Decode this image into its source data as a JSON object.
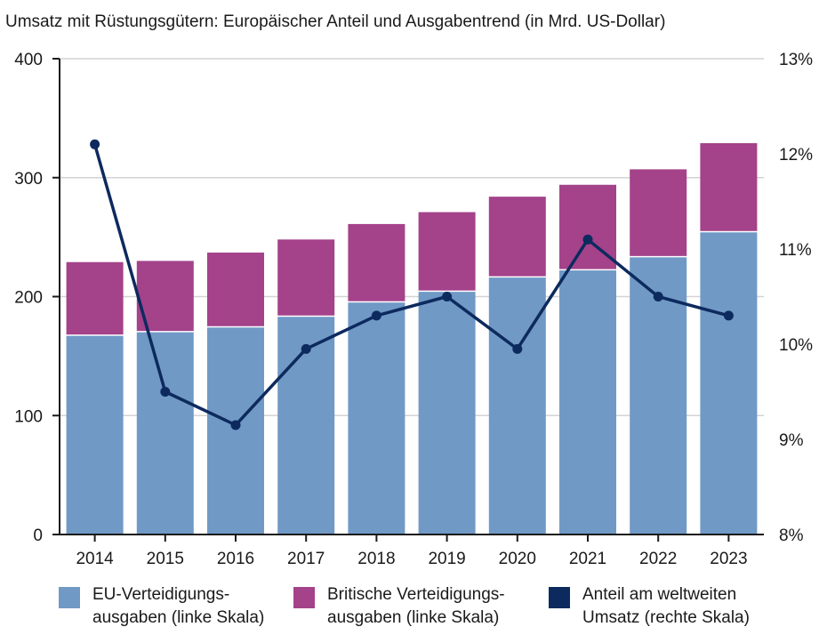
{
  "chart_data": {
    "type": "bar",
    "title": "Umsatz mit Rüstungsgütern: Europäischer Anteil und Ausgabentrend (in Mrd. US-Dollar)",
    "categories": [
      "2014",
      "2015",
      "2016",
      "2017",
      "2018",
      "2019",
      "2020",
      "2021",
      "2022",
      "2023"
    ],
    "series": [
      {
        "name": "EU-Verteidigungs-ausgaben (linke Skala)",
        "type": "stacked-bar",
        "axis": "left",
        "values": [
          167,
          170,
          174,
          183,
          195,
          204,
          216,
          222,
          233,
          254
        ]
      },
      {
        "name": "Britische Verteidigungs-ausgaben (linke Skala)",
        "type": "stacked-bar",
        "axis": "left",
        "values": [
          62,
          60,
          63,
          65,
          66,
          67,
          68,
          72,
          74,
          75
        ]
      },
      {
        "name": "Anteil am weltweiten Umsatz (rechte Skala)",
        "type": "line",
        "axis": "right",
        "unit": "%",
        "values": [
          12.1,
          9.5,
          9.15,
          9.95,
          10.3,
          10.5,
          9.95,
          11.1,
          10.5,
          10.3
        ]
      }
    ],
    "yleft": {
      "lim": [
        0,
        400
      ],
      "ticks": [
        0,
        100,
        200,
        300,
        400
      ]
    },
    "yright": {
      "lim": [
        8,
        13
      ],
      "ticks": [
        "8%",
        "9%",
        "10%",
        "11%",
        "12%",
        "13%"
      ]
    },
    "grid": true,
    "legend_position": "bottom",
    "colors": {
      "eu": "#7099c6",
      "uk": "#a4428a",
      "share": "#0d2a5e",
      "grid": "#d3d3d3"
    }
  },
  "legend": [
    {
      "line1": "EU-Verteidigungs-",
      "line2": "ausgaben (linke Skala)"
    },
    {
      "line1": "Britische Verteidigungs-",
      "line2": "ausgaben (linke Skala)"
    },
    {
      "line1": "Anteil am weltweiten",
      "line2": "Umsatz (rechte Skala)"
    }
  ]
}
